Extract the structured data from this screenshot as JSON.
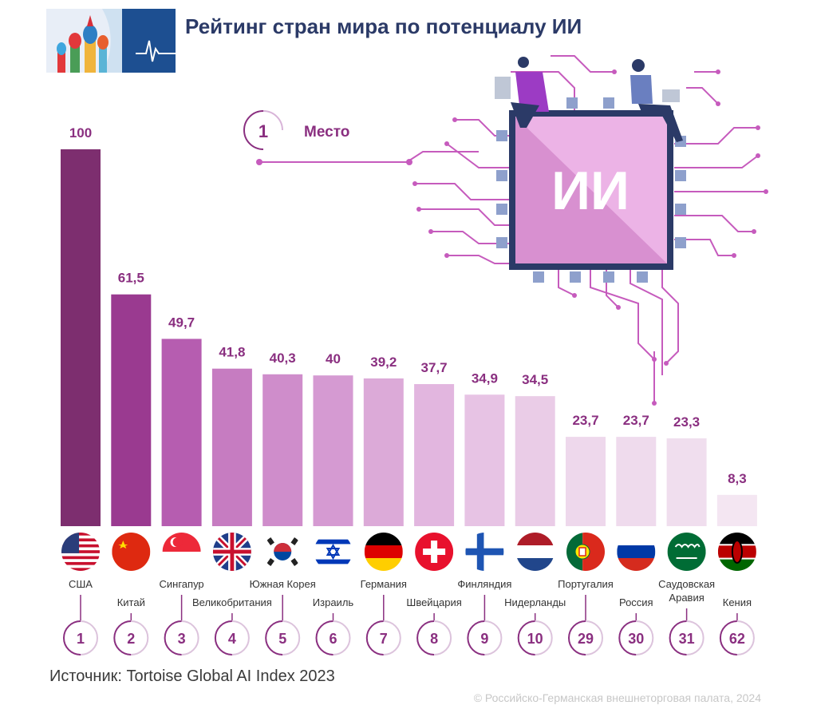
{
  "header": {
    "title": "Рейтинг стран мира по потенциалу ИИ"
  },
  "legend": {
    "marker": "1",
    "label": "Место"
  },
  "chip": {
    "label": "ИИ"
  },
  "footer": {
    "source": "Источник: Tortoise Global AI Index 2023",
    "copyright": "© Российско-Германская внешнеторговая палата, 2024"
  },
  "colors": {
    "title": "#2b3a67",
    "accent": "#8a2f80",
    "circuit": "#c65bbd",
    "pad": "#8ea0cc"
  },
  "chart_data": {
    "type": "bar",
    "title": "Рейтинг стран мира по потенциалу ИИ",
    "xlabel": "",
    "ylabel": "",
    "grid": false,
    "legend": "top-left",
    "categories": [
      "США",
      "Китай",
      "Сингапур",
      "Великобритания",
      "Южная Корея",
      "Израиль",
      "Германия",
      "Швейцария",
      "Финляндия",
      "Нидерланды",
      "Португалия",
      "Россия",
      "Саудовская Аравия",
      "Кения"
    ],
    "category_lines": [
      [
        "США"
      ],
      [
        "Китай"
      ],
      [
        "Сингапур"
      ],
      [
        "Великобритания"
      ],
      [
        "Южная Корея"
      ],
      [
        "Израиль"
      ],
      [
        "Германия"
      ],
      [
        "Швейцария"
      ],
      [
        "Финляндия"
      ],
      [
        "Нидерланды"
      ],
      [
        "Португалия"
      ],
      [
        "Россия"
      ],
      [
        "Саудовская",
        "Аравия"
      ],
      [
        "Кения"
      ]
    ],
    "values": [
      100,
      61.5,
      49.7,
      41.8,
      40.3,
      40,
      39.2,
      37.7,
      34.9,
      34.5,
      23.7,
      23.7,
      23.3,
      8.3
    ],
    "value_labels": [
      "100",
      "61,5",
      "49,7",
      "41,8",
      "40,3",
      "40",
      "39,2",
      "37,7",
      "34,9",
      "34,5",
      "23,7",
      "23,7",
      "23,3",
      "8,3"
    ],
    "ranks": [
      "1",
      "2",
      "3",
      "4",
      "5",
      "6",
      "7",
      "8",
      "9",
      "10",
      "29",
      "30",
      "31",
      "62"
    ],
    "flags": [
      "flag-usa-icon",
      "flag-china-icon",
      "flag-singapore-icon",
      "flag-uk-icon",
      "flag-south-korea-icon",
      "flag-israel-icon",
      "flag-germany-icon",
      "flag-switzerland-icon",
      "flag-finland-icon",
      "flag-netherlands-icon",
      "flag-portugal-icon",
      "flag-russia-icon",
      "flag-saudi-arabia-icon",
      "flag-kenya-icon"
    ],
    "bar_colors": [
      "#7d2e6f",
      "#9a3a90",
      "#b65db0",
      "#c67cc1",
      "#cf8dcb",
      "#d59ad2",
      "#dcaad8",
      "#e2b6df",
      "#e7c3e4",
      "#eaccE7",
      "#eed8ec",
      "#efdbed",
      "#f0deee",
      "#f4e6f2"
    ],
    "ylim": [
      0,
      100
    ]
  }
}
